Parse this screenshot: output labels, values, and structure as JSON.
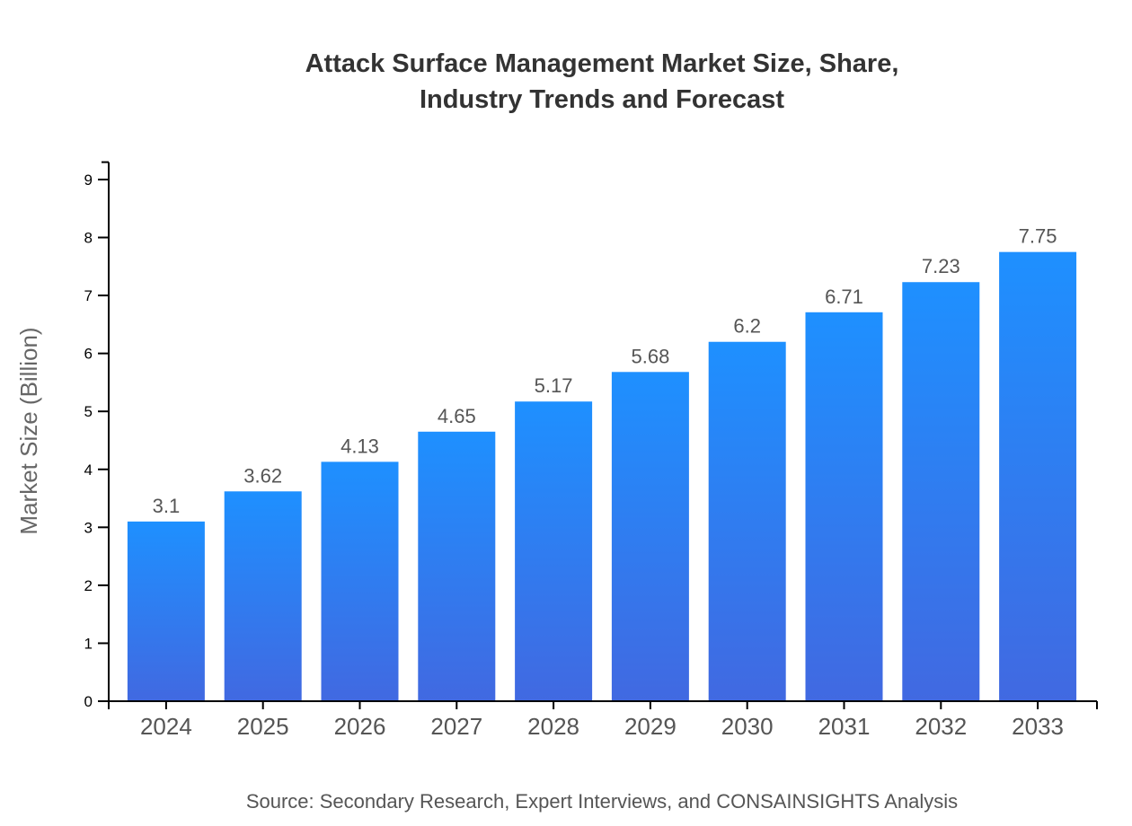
{
  "chart_data": {
    "type": "bar",
    "title_lines": [
      "Attack Surface Management Market Size, Share,",
      "Industry Trends and Forecast"
    ],
    "categories": [
      "2024",
      "2025",
      "2026",
      "2027",
      "2028",
      "2029",
      "2030",
      "2031",
      "2032",
      "2033"
    ],
    "values": [
      3.1,
      3.62,
      4.13,
      4.65,
      5.17,
      5.68,
      6.2,
      6.71,
      7.23,
      7.75
    ],
    "xlabel": "",
    "ylabel": "Market Size (Billion)",
    "ylim": [
      0,
      9.3
    ],
    "yticks": [
      0,
      1,
      2,
      3,
      4,
      5,
      6,
      7,
      8,
      9
    ],
    "grid": false,
    "legend": "none",
    "colors": {
      "bar_top": "#1E90FF",
      "bar_bottom": "#4169E1"
    },
    "source": "Source: Secondary Research, Expert Interviews, and CONSAINSIGHTS Analysis"
  }
}
